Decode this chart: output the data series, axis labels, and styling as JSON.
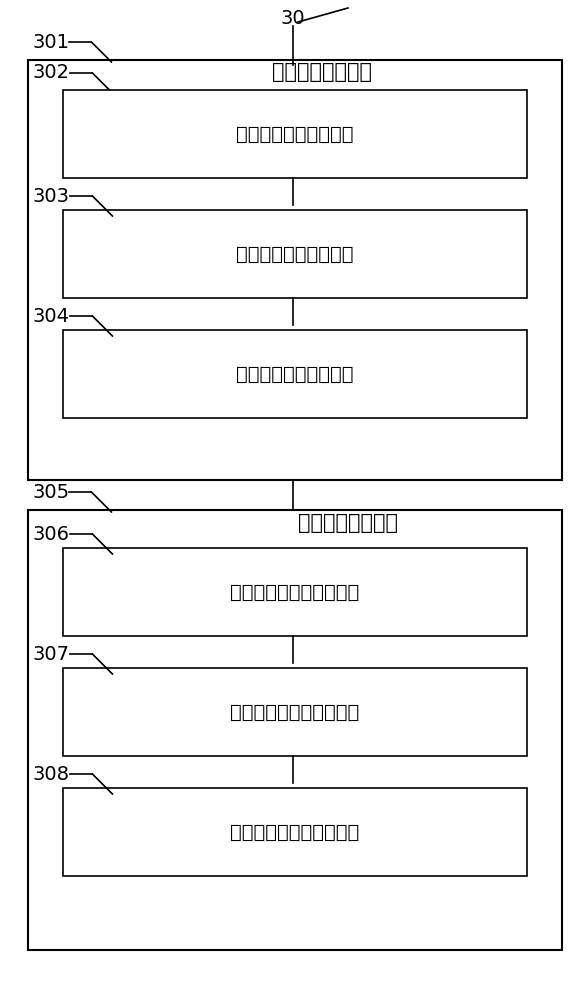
{
  "bg_color": "#ffffff",
  "top_label": "30",
  "outer_box1_label": "301",
  "outer_box1_title": "换挡参数计算单元",
  "sub_boxes_top": [
    {
      "label": "302",
      "text": "道路拥堵度计算子单元"
    },
    {
      "label": "303",
      "text": "驾驶激烈度计算子单元"
    },
    {
      "label": "304",
      "text": "高电量频度计算子单元"
    }
  ],
  "outer_box2_label": "305",
  "outer_box2_title": "换挡模式判定单元",
  "sub_boxes_bottom": [
    {
      "label": "306",
      "text": "性能换挡模式判定子单元"
    },
    {
      "label": "307",
      "text": "城市换挡模式判定子单元"
    },
    {
      "label": "308",
      "text": "电动换挡模式判定子单元"
    }
  ],
  "fig_width": 5.86,
  "fig_height": 10.0,
  "font_size_label": 14,
  "font_size_title": 15,
  "font_size_sub": 14
}
